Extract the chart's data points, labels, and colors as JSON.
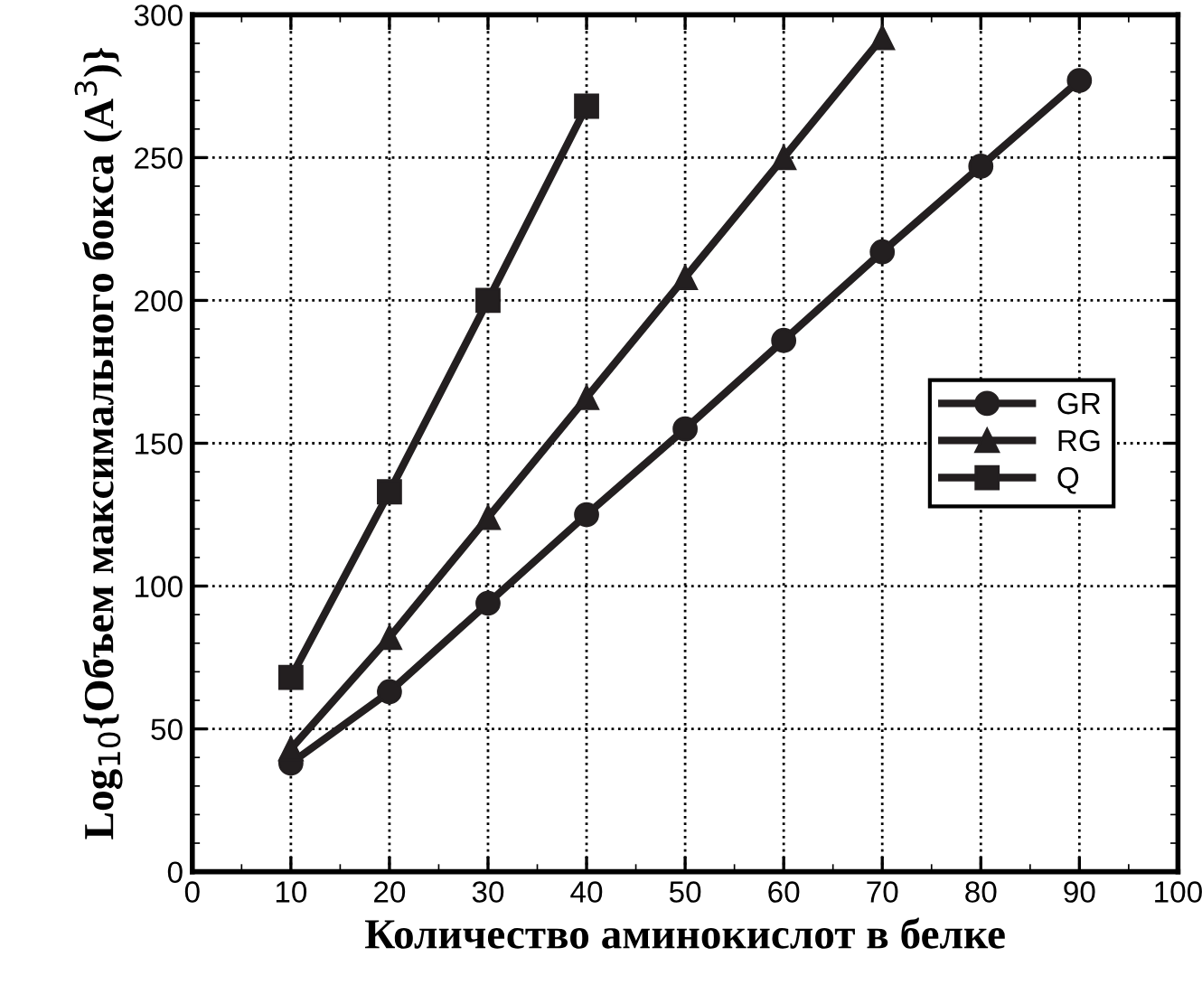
{
  "chart_data": {
    "type": "line",
    "xlabel": "Количество аминокислот в белке",
    "ylabel": "Log$_{10}${Объем максимального бокса (A$^{3}$)}",
    "x": [
      10,
      20,
      30,
      40,
      50,
      60,
      70,
      80,
      90
    ],
    "series": [
      {
        "name": "GR",
        "color": "#231f20",
        "marker": "circle",
        "values": [
          38,
          63,
          94,
          125,
          155,
          186,
          217,
          247,
          277
        ]
      },
      {
        "name": "RG",
        "color": "#231f20",
        "marker": "triangle",
        "values": [
          43,
          82,
          124,
          166,
          208,
          250,
          292,
          null,
          null
        ]
      },
      {
        "name": "Q",
        "color": "#231f20",
        "marker": "square",
        "values": [
          68,
          133,
          200,
          268,
          null,
          null,
          null,
          null,
          null
        ]
      }
    ],
    "xlim": [
      0,
      100
    ],
    "xticks": [
      0,
      10,
      20,
      30,
      40,
      50,
      60,
      70,
      80,
      90,
      100
    ],
    "ylim": [
      0,
      300
    ],
    "yticks": [
      0,
      50,
      100,
      150,
      200,
      250,
      300
    ],
    "grid": true,
    "legend": "right",
    "line_style": "solid"
  }
}
